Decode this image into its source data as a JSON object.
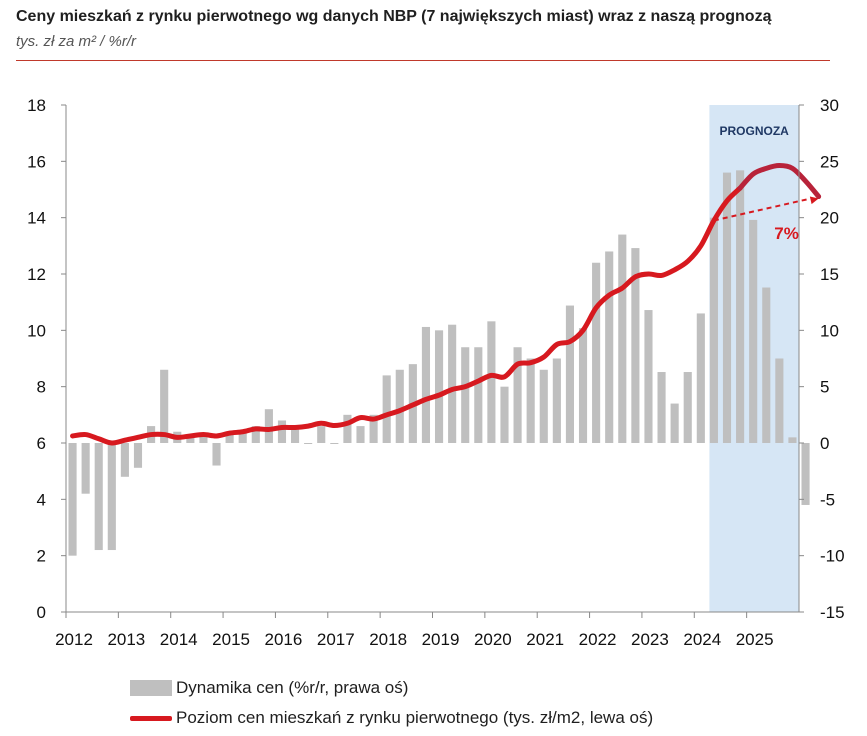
{
  "header": {
    "title": "Ceny mieszkań z rynku pierwotnego wg danych NBP (7 największych miast) wraz z naszą prognozą",
    "subtitle": "tys. zł za m² / %r/r"
  },
  "colors": {
    "bars": "#bfbfbf",
    "line": "#d7191f",
    "forecast_bg": "#d6e6f5",
    "forecast_label": "#1f3864",
    "arrow": "#d7191f",
    "rule": "#c0392b"
  },
  "chart_data": {
    "type": "bar+line",
    "x_labels": [
      "2012",
      "2013",
      "2014",
      "2015",
      "2016",
      "2017",
      "2018",
      "2019",
      "2020",
      "2021",
      "2022",
      "2023",
      "2024",
      "2025"
    ],
    "left_axis": {
      "ylim": [
        0,
        18
      ],
      "ticks": [
        "0",
        "2",
        "4",
        "6",
        "8",
        "10",
        "12",
        "14",
        "16",
        "18"
      ]
    },
    "right_axis": {
      "ylim": [
        -15,
        30
      ],
      "ticks": [
        "-15",
        "-10",
        "-5",
        "0",
        "5",
        "10",
        "15",
        "20",
        "25",
        "30"
      ]
    },
    "forecast_label": "PROGNOZA",
    "forecast_start_quarter_index": 49,
    "annotation": "7%",
    "series": [
      {
        "name": "Dynamika cen (%r/r, prawa oś)",
        "type": "bar",
        "axis": "right",
        "values": [
          -10,
          -4.5,
          -9.5,
          -9.5,
          -3,
          -2.2,
          1.5,
          6.5,
          1,
          0.5,
          0.8,
          -2,
          1,
          1,
          1.5,
          3,
          2,
          1.5,
          0,
          1.5,
          0,
          2.5,
          1.5,
          2.5,
          6,
          6.5,
          7,
          10.3,
          10,
          10.5,
          8.5,
          8.5,
          10.8,
          5,
          8.5,
          7.5,
          6.5,
          7.5,
          12.2,
          10.2,
          16,
          17,
          18.5,
          17.3,
          11.8,
          6.3,
          3.5,
          6.3,
          11.5,
          20,
          24,
          24.2,
          19.8,
          13.8,
          7.5,
          0.5,
          -5.5
        ]
      },
      {
        "name": "Poziom cen mieszkań z rynku pierwotnego (tys. zł/m2, lewa oś)",
        "type": "line",
        "axis": "left",
        "values": [
          6.25,
          6.3,
          6.15,
          6.0,
          6.1,
          6.2,
          6.3,
          6.3,
          6.2,
          6.25,
          6.3,
          6.25,
          6.35,
          6.4,
          6.5,
          6.48,
          6.55,
          6.55,
          6.6,
          6.7,
          6.62,
          6.7,
          6.9,
          6.85,
          7.0,
          7.15,
          7.35,
          7.55,
          7.7,
          7.9,
          8.0,
          8.2,
          8.4,
          8.35,
          8.8,
          8.85,
          9.05,
          9.5,
          9.6,
          10.0,
          10.8,
          11.25,
          11.5,
          11.9,
          12.0,
          11.95,
          12.15,
          12.45,
          13.0,
          13.9,
          14.6,
          15.05,
          15.55,
          15.75,
          15.85,
          15.75,
          15.3,
          14.75
        ]
      }
    ],
    "legend": [
      {
        "label": "Dynamika cen (%r/r, prawa oś)"
      },
      {
        "label": "Poziom cen mieszkań z rynku pierwotnego (tys. zł/m2, lewa oś)"
      }
    ]
  }
}
